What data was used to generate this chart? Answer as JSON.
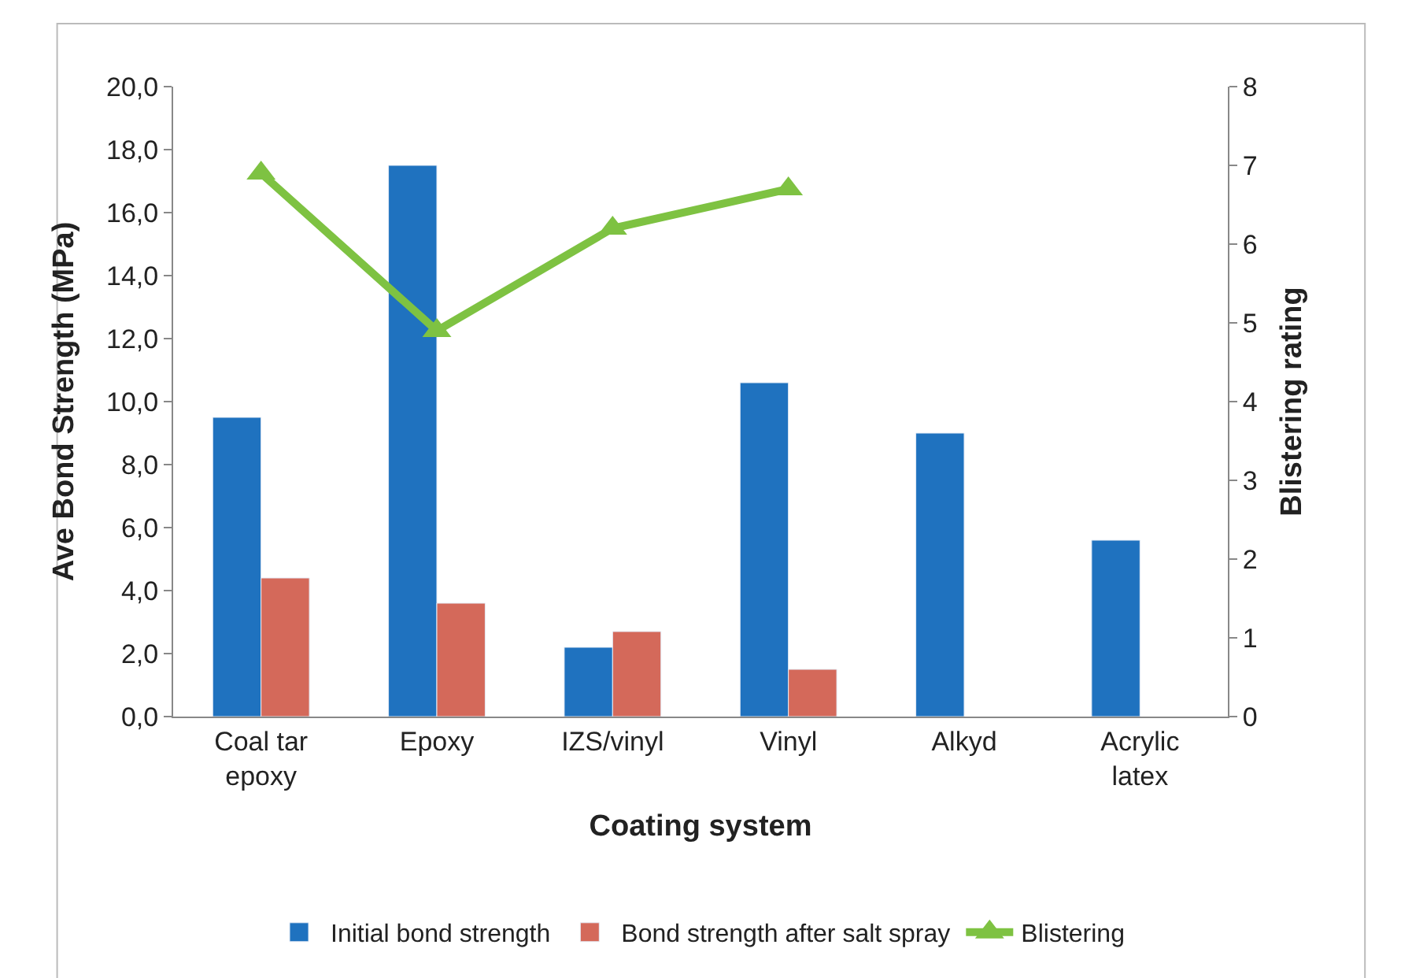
{
  "chart_data": {
    "type": "bar",
    "xlabel": "Coating system",
    "ylabel": "Ave Bond Strength (MPa)",
    "y2label": "Blistering rating",
    "categories": [
      "Coal tar\nepoxy",
      "Epoxy",
      "IZS/vinyl",
      "Vinyl",
      "Alkyd",
      "Acrylic\nlatex"
    ],
    "series": [
      {
        "name": "Initial bond strength",
        "color": "#1f72bf",
        "values": [
          9.5,
          17.5,
          2.2,
          10.6,
          9.0,
          5.6
        ]
      },
      {
        "name": "Bond strength after salt spray",
        "color": "#d4695a",
        "values": [
          4.4,
          3.6,
          2.7,
          1.5,
          null,
          null
        ]
      },
      {
        "name": "Blistering",
        "type": "line",
        "axis": "y2",
        "marker": "triangle",
        "color": "#7ec242",
        "values": [
          6.9,
          4.9,
          6.2,
          6.7,
          null,
          null
        ]
      }
    ],
    "ylim": [
      0,
      20
    ],
    "yticks": [
      {
        "value": 0,
        "label": "0,0"
      },
      {
        "value": 2,
        "label": "2,0"
      },
      {
        "value": 4,
        "label": "4,0"
      },
      {
        "value": 6,
        "label": "6,0"
      },
      {
        "value": 8,
        "label": "8,0"
      },
      {
        "value": 10,
        "label": "10,0"
      },
      {
        "value": 12,
        "label": "12,0"
      },
      {
        "value": 14,
        "label": "14,0"
      },
      {
        "value": 16,
        "label": "16,0"
      },
      {
        "value": 18,
        "label": "18,0"
      },
      {
        "value": 20,
        "label": "20,0"
      }
    ],
    "y2lim": [
      0,
      8
    ],
    "y2ticks": [
      0,
      1,
      2,
      3,
      4,
      5,
      6,
      7,
      8
    ],
    "legend": "bottom"
  }
}
